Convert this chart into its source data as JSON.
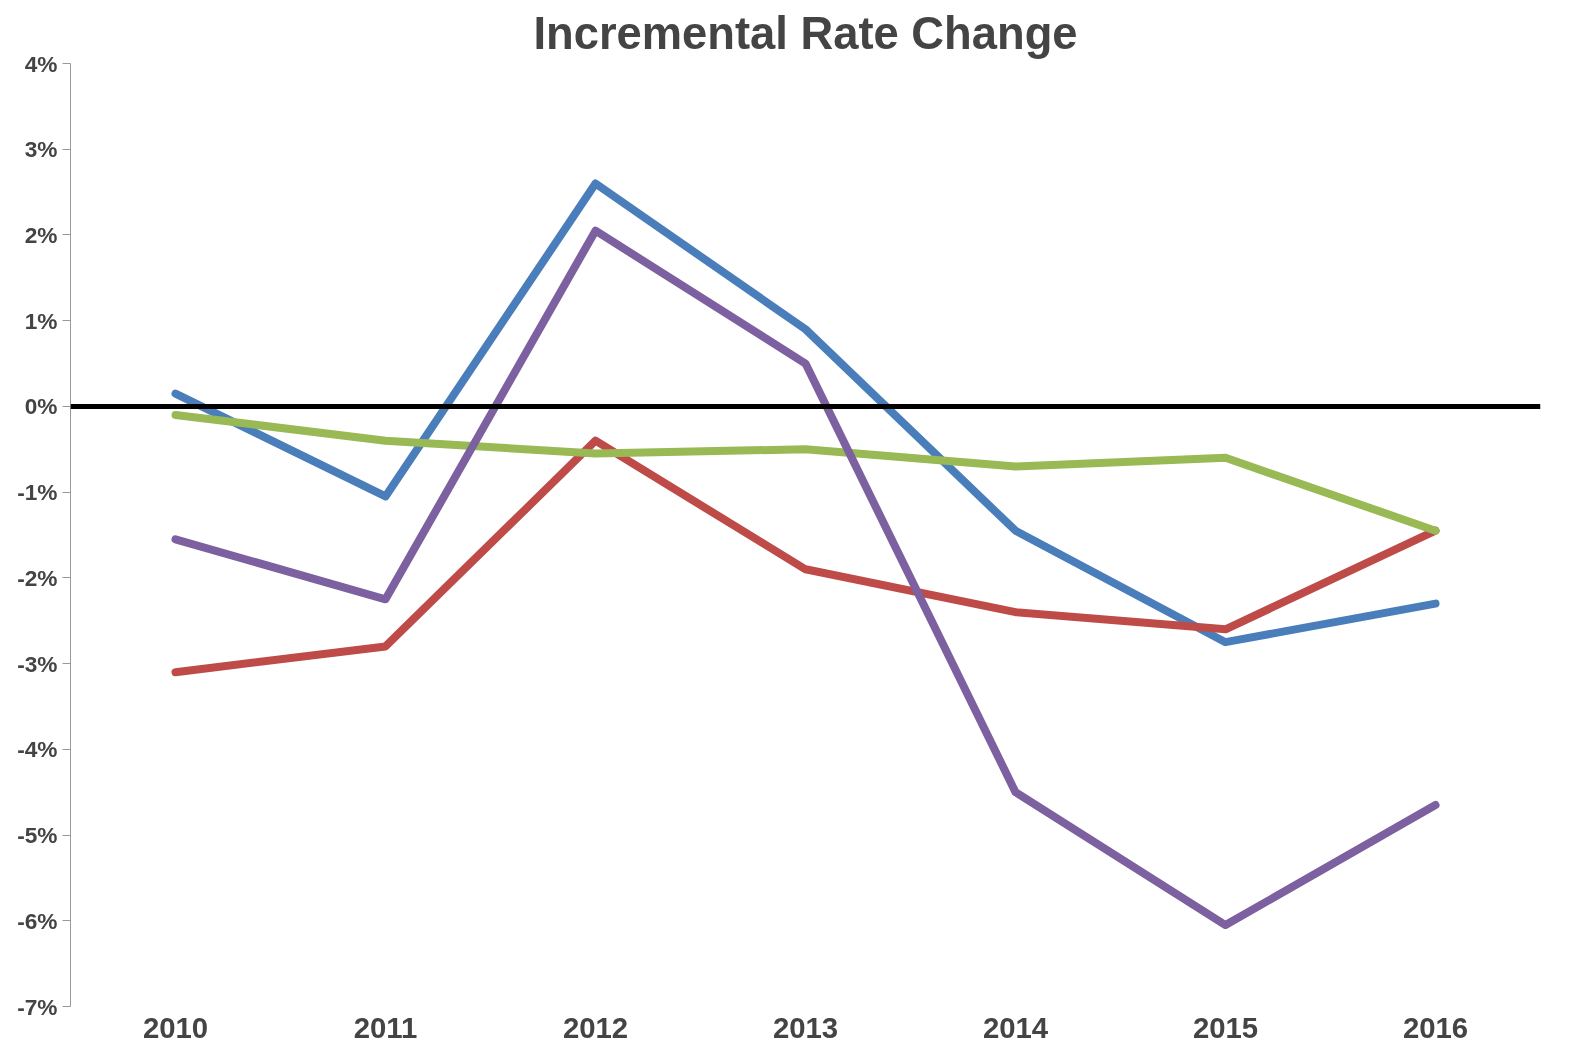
{
  "chart_data": {
    "type": "line",
    "title": "Incremental Rate Change",
    "categories": [
      "2010",
      "2011",
      "2012",
      "2013",
      "2014",
      "2015",
      "2016"
    ],
    "series": [
      {
        "color": "#4a7ebb",
        "values": [
          0.15,
          -1.05,
          2.6,
          0.9,
          -1.45,
          -2.75,
          -2.3
        ]
      },
      {
        "color": "#be4b48",
        "values": [
          -3.1,
          -2.8,
          -0.4,
          -1.9,
          -2.4,
          -2.6,
          -1.45
        ]
      },
      {
        "color": "#98b954",
        "values": [
          -0.1,
          -0.4,
          -0.55,
          -0.5,
          -0.7,
          -0.6,
          -1.45
        ]
      },
      {
        "color": "#7d60a0",
        "values": [
          -1.55,
          -2.25,
          2.05,
          0.5,
          -4.5,
          -6.05,
          -4.65
        ]
      }
    ],
    "ylim": [
      -7,
      4
    ],
    "yticks": [
      {
        "value": 4,
        "label": "4%"
      },
      {
        "value": 3,
        "label": "3%"
      },
      {
        "value": 2,
        "label": "2%"
      },
      {
        "value": 1,
        "label": "1%"
      },
      {
        "value": 0,
        "label": "0%"
      },
      {
        "value": -1,
        "label": "-1%"
      },
      {
        "value": -2,
        "label": "-2%"
      },
      {
        "value": -3,
        "label": "-3%"
      },
      {
        "value": -4,
        "label": "-4%"
      },
      {
        "value": -5,
        "label": "-5%"
      },
      {
        "value": -6,
        "label": "-6%"
      },
      {
        "value": -7,
        "label": "-7%"
      }
    ],
    "ref_lines": [
      {
        "axis": "y",
        "value": 0,
        "color": "#000000"
      }
    ],
    "grid": false,
    "marker": "none",
    "line_style": "solid"
  }
}
